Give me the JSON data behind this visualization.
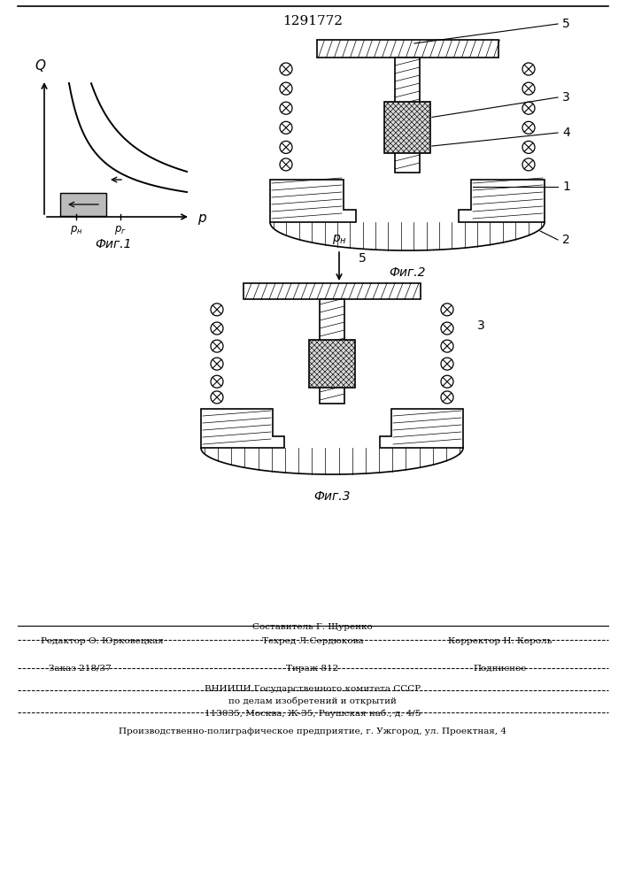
{
  "patent_number": "1291772",
  "background_color": "#ffffff",
  "line_color": "#000000",
  "fig_labels": [
    "Фиг.1",
    "Фиг.2",
    "Фиг.3"
  ],
  "footer_line1": "Составитель Г. Щуренко",
  "footer_line2_left": "Редактор О. Юрковецкая",
  "footer_line2_mid": "Техред Л.Сердюкова",
  "footer_line2_right": "Корректор Н. Король",
  "footer_line3_left": "Заказ 218/37",
  "footer_line3_mid": "Тираж 812",
  "footer_line3_right": "Подписное",
  "footer_line4": "ВНИИПИ Государственного комитета СССР",
  "footer_line5": "по делам изобретений и открытий",
  "footer_line6": "113035, Москва, Ж-35, Раушская наб., д. 4/5",
  "footer_line7": "Производственно-полиграфическое предприятие, г. Ужгород, ул. Проектная, 4"
}
